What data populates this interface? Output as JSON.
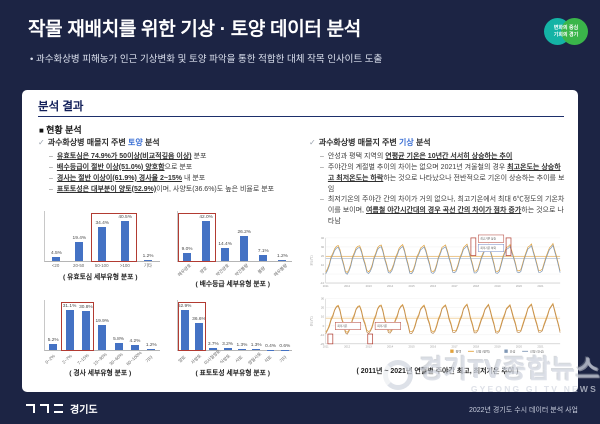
{
  "header": {
    "title": "작물 재배치를 위한 기상 · 토양 데이터 분석",
    "subtitle_bullet": "과수화상병 피해농가 인근 기상변화 및 토양 파악을 통한 적합한 대체 작목 인사이트 도출",
    "badge": {
      "line1": "변화의 중심",
      "line2": "기회의 경기"
    }
  },
  "card": {
    "title": "분석 결과",
    "section_title": "현황 분석",
    "left": {
      "heading": [
        {
          "t": "과수화상병 매몰지 주변 "
        },
        {
          "t": "토양",
          "hl": true
        },
        {
          "t": " 분석"
        }
      ],
      "bullets": [
        [
          {
            "t": "유효토심은 74.9%가 50이상(비교적깊음 이상)",
            "u": true
          },
          {
            "t": " 분포"
          }
        ],
        [
          {
            "t": "배수등급이 절반 이상(51.0%) 양호함",
            "u": true
          },
          {
            "t": "으로 분포"
          }
        ],
        [
          {
            "t": "경사는 절반 이상이(61.9%) 경사율 2~15%",
            "u": true
          },
          {
            "t": " 내 분포"
          }
        ],
        [
          {
            "t": "표토토성은 대부분이 양토(52.9%)",
            "u": true
          },
          {
            "t": "이며, 사양토(36.6%)도 높은 비율로 분포"
          }
        ]
      ]
    },
    "right": {
      "heading": [
        {
          "t": "과수화상병 매몰지 주변 "
        },
        {
          "t": "기상",
          "hl": true
        },
        {
          "t": " 분석"
        }
      ],
      "bullets": [
        [
          {
            "t": "안성과 평택 지역의 "
          },
          {
            "t": "연평균 기온은 10년간 서서히 상승하는 추이",
            "u": true
          }
        ],
        [
          {
            "t": "주야간의 계절별 추이의 차이는 없으며 2021년 겨울철의 경우 "
          },
          {
            "t": "최고온도는 상승하고 최저온도는 하락",
            "u": true
          },
          {
            "t": "하는 것으로 나타났으나 전반적으로 기온이 상승하는 추이를 보임"
          }
        ],
        [
          {
            "t": "최저기온의 주야간 간의 차이가 거의 없으나, 최고기온에서 최대 6℃정도의 기온차이를 보이며, "
          },
          {
            "t": "여름철 야간시간대의 경우 곡선 간의 차이가 점차 증가",
            "u": true
          },
          {
            "t": "하는 것으로 나타남"
          }
        ]
      ]
    }
  },
  "footer": {
    "org": "경기도",
    "credit": "2022년 경기도 수시 데이터 분석 사업"
  },
  "watermark": {
    "kr": "경기TV종합뉴스",
    "en": "GYEONG GI TV NEWS"
  },
  "chart_data": [
    {
      "type": "bar",
      "title": "( 유효토심 세부유형 분포 )",
      "categories": [
        "<20",
        "20-50",
        "50-100",
        ">100",
        "기타"
      ],
      "values": [
        4.5,
        19.4,
        34.4,
        40.5,
        1.2
      ],
      "unit": "%",
      "bar_color": "#4472C4",
      "highlight": {
        "from": 2,
        "to": 3
      },
      "rotate_labels": false
    },
    {
      "type": "bar",
      "title": "( 배수등급 세부유형 분포 )",
      "categories": [
        "매우양호",
        "양호",
        "약간양호",
        "약간불량",
        "불량",
        "매우불량"
      ],
      "values": [
        9.0,
        42.0,
        14.4,
        26.2,
        7.1,
        1.2
      ],
      "unit": "%",
      "bar_color": "#4472C4",
      "highlight": {
        "from": 0,
        "to": 1
      },
      "rotate_labels": true
    },
    {
      "type": "bar",
      "title": "( 경사 세부유형 분포 )",
      "categories": [
        "0~2%",
        "2~7%",
        "7~15%",
        "15~30%",
        "30~60%",
        "60~100%",
        "기타"
      ],
      "values": [
        5.2,
        31.1,
        30.8,
        19.9,
        5.8,
        4.2,
        1.2
      ],
      "unit": "%",
      "bar_color": "#4472C4",
      "highlight": {
        "from": 1,
        "to": 2
      },
      "rotate_labels": true
    },
    {
      "type": "bar",
      "title": "( 표토토성 세부유형 분포 )",
      "categories": [
        "양토",
        "사양토",
        "미사질양토",
        "식양토",
        "사토",
        "양질사토",
        "식토",
        "기타"
      ],
      "values": [
        52.9,
        36.6,
        3.7,
        3.2,
        1.3,
        1.3,
        0.4,
        0.6
      ],
      "unit": "%",
      "bar_color": "#4472C4",
      "highlight": {
        "from": 0,
        "to": 1
      },
      "rotate_labels": true
    },
    {
      "type": "line",
      "title": "( 2011년 ~ 2021년 연월별 주야간 최고, 최저기온 추이 )",
      "x_ticks": [
        2011,
        2012,
        2013,
        2014,
        2015,
        2016,
        2017,
        2018,
        2019,
        2020,
        2021
      ],
      "months_per_year": 12,
      "trend_per_year": 0.06,
      "axis_title": "온도(℃)",
      "panels": [
        {
          "name": "주간(최고기온)",
          "ylim": [
            -10,
            40
          ],
          "series": [
            {
              "name": "평택",
              "color": "#E2A23B",
              "monthly_pattern": [
                2,
                5,
                11,
                18,
                24,
                28,
                31,
                32,
                26,
                19,
                11,
                4
              ]
            },
            {
              "name": "안성",
              "color": "#7F97B5",
              "monthly_pattern": [
                0,
                3,
                9,
                16,
                22,
                26,
                29,
                30,
                24,
                17,
                9,
                2
              ]
            }
          ],
          "ref_lines": [
            {
              "value": 19.5,
              "color": "#E2A23B"
            },
            {
              "value": 17.3,
              "color": "#7F97B5"
            }
          ]
        },
        {
          "name": "야간(최저기온)",
          "ylim": [
            -20,
            30
          ],
          "series": [
            {
              "name": "평택",
              "color": "#E2A23B",
              "monthly_pattern": [
                -7,
                -5,
                1,
                7,
                13,
                18,
                22,
                23,
                17,
                9,
                2,
                -5
              ]
            },
            {
              "name": "안성",
              "color": "#BC8A53",
              "monthly_pattern": [
                -9,
                -6,
                -1,
                5,
                11,
                17,
                21,
                22,
                15,
                7,
                0,
                -7
              ]
            }
          ],
          "ref_lines": [
            {
              "value": 8.5,
              "color": "#E2A23B"
            }
          ]
        }
      ],
      "legend": [
        {
          "swatch": true,
          "color": "#E2A23B",
          "label": "평택"
        },
        {
          "swatch": false,
          "color": "#E2A23B",
          "label": "선형 (평택)"
        },
        {
          "swatch": true,
          "color": "#7F97B5",
          "label": "안성"
        },
        {
          "swatch": false,
          "color": "#7F97B5",
          "label": "선형 (안성)"
        }
      ],
      "annotations": [
        {
          "panel": 0,
          "frac": 0.63,
          "kind": "peak",
          "boxes": [
            [
              "최고기온 상승"
            ],
            [
              "최저기온 하락"
            ]
          ]
        },
        {
          "panel": 0,
          "frac": 0.78,
          "kind": "peak",
          "boxes": []
        },
        {
          "panel": 1,
          "frac": 0.02,
          "kind": "trough",
          "boxes": [
            [
              "최저기온"
            ]
          ]
        },
        {
          "panel": 1,
          "frac": 0.19,
          "kind": "trough",
          "boxes": [
            [
              "최저기온"
            ]
          ]
        }
      ]
    }
  ]
}
